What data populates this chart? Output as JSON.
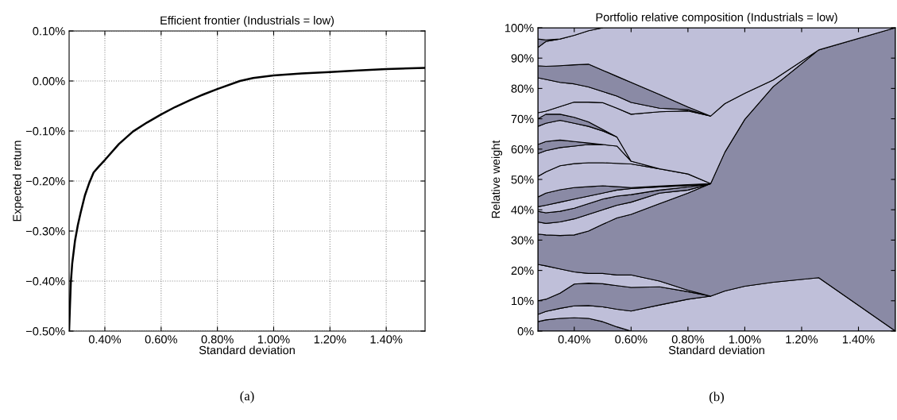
{
  "chart_data": [
    {
      "type": "line",
      "title": "Efficient frontier (Industrials = low)",
      "xlabel": "Standard deviation",
      "ylabel": "Expected return",
      "x": [
        0.273,
        0.276,
        0.279,
        0.284,
        0.294,
        0.304,
        0.314,
        0.329,
        0.345,
        0.36,
        0.38,
        0.4,
        0.45,
        0.5,
        0.55,
        0.6,
        0.65,
        0.7,
        0.75,
        0.8,
        0.88,
        0.927,
        1.0,
        1.1,
        1.2,
        1.3,
        1.4,
        1.538
      ],
      "series": [
        {
          "color": "#000000",
          "values": [
            -0.5,
            -0.45,
            -0.404,
            -0.365,
            -0.319,
            -0.288,
            -0.263,
            -0.229,
            -0.203,
            -0.183,
            -0.17,
            -0.158,
            -0.126,
            -0.101,
            -0.083,
            -0.067,
            -0.052,
            -0.039,
            -0.027,
            -0.016,
            0.0,
            0.006,
            0.011,
            0.015,
            0.018,
            0.021,
            0.024,
            0.026
          ]
        }
      ],
      "xlim": [
        0.273,
        1.538
      ],
      "ylim": [
        -0.5,
        0.1
      ],
      "xticks": [
        {
          "value": 0.4,
          "label": "0.40%"
        },
        {
          "value": 0.6,
          "label": "0.60%"
        },
        {
          "value": 0.8,
          "label": "0.80%"
        },
        {
          "value": 1.0,
          "label": "1.00%"
        },
        {
          "value": 1.2,
          "label": "1.20%"
        },
        {
          "value": 1.4,
          "label": "1.40%"
        }
      ],
      "yticks": [
        {
          "value": -0.5,
          "label": "−0.50%"
        },
        {
          "value": -0.4,
          "label": "−0.40%"
        },
        {
          "value": -0.3,
          "label": "−0.30%"
        },
        {
          "value": -0.2,
          "label": "−0.20%"
        },
        {
          "value": -0.1,
          "label": "−0.10%"
        },
        {
          "value": 0.0,
          "label": "0.00%"
        },
        {
          "value": 0.1,
          "label": "0.10%"
        }
      ],
      "grid": true,
      "annotations": [
        "(a)"
      ]
    },
    {
      "type": "area",
      "stacked": true,
      "title": "Portfolio relative composition (Industrials = low)",
      "xlabel": "Standard deviation",
      "ylabel": "Relative weight",
      "x": [
        0.272,
        0.3,
        0.35,
        0.4,
        0.45,
        0.5,
        0.55,
        0.6,
        0.7,
        0.8,
        0.88,
        0.93,
        1.0,
        1.1,
        1.26,
        1.53
      ],
      "series": [
        {
          "color": "#8a8aa5",
          "values": [
            3.1,
            3.7,
            4.2,
            4.4,
            4.2,
            3.1,
            1.4,
            0,
            null,
            null,
            null,
            null,
            null,
            null,
            null,
            null
          ]
        },
        {
          "color": "#bfbfd9",
          "values": [
            2.4,
            2.8,
            3.3,
            3.9,
            4.2,
            4.9,
            5.8,
            6.6,
            8.6,
            10.5,
            11.5,
            13.2,
            14.8,
            16.1,
            17.6,
            0
          ]
        },
        {
          "color": "#8a8aa5",
          "values": [
            4.5,
            4.0,
            5.0,
            7.2,
            7.4,
            7.6,
            7.8,
            7.8,
            6.0,
            2.5,
            0,
            null,
            null,
            null,
            null,
            null
          ]
        },
        {
          "color": "#bfbfd9",
          "values": [
            12.0,
            11.0,
            8.0,
            4.0,
            3.2,
            3.4,
            3.5,
            4.1,
            1.9,
            0.5,
            0,
            null,
            null,
            null,
            null,
            null
          ]
        },
        {
          "color": "#8a8aa5",
          "values": [
            10.0,
            10.2,
            11.0,
            12.2,
            14.0,
            16.2,
            18.8,
            20.0,
            25.5,
            32.0,
            37.1,
            45.8,
            55.0,
            64.5,
            75.1,
            100
          ]
        },
        {
          "color": "#bfbfd9",
          "values": [
            4.0,
            3.8,
            4.5,
            5.3,
            5.5,
            4.8,
            4.2,
            4.0,
            3.5,
            1.0,
            0,
            null,
            null,
            null,
            null,
            null
          ]
        },
        {
          "color": "#8a8aa5",
          "values": [
            3.5,
            3.5,
            3.5,
            3.5,
            3.5,
            3.5,
            3.0,
            2.5,
            1.0,
            1.0,
            0,
            null,
            null,
            null,
            null,
            null
          ]
        },
        {
          "color": "#bfbfd9",
          "values": [
            1.5,
            2.5,
            3.0,
            3.0,
            2.5,
            2.0,
            2.0,
            2.0,
            1.0,
            0.5,
            0,
            null,
            null,
            null,
            null,
            null
          ]
        },
        {
          "color": "#8a8aa5",
          "values": [
            3.2,
            4.0,
            4.1,
            3.8,
            3.1,
            2.4,
            1.1,
            0.3,
            0.3,
            0.3,
            0,
            null,
            null,
            null,
            null,
            null
          ]
        },
        {
          "color": "#bfbfd9",
          "values": [
            6.8,
            7.0,
            7.9,
            7.9,
            7.9,
            7.6,
            7.7,
            7.8,
            5.7,
            3.5,
            0,
            null,
            null,
            null,
            null,
            null
          ]
        },
        {
          "color": "#bfbfd9",
          "values": [
            7.5,
            7.0,
            6.0,
            5.8,
            6.0,
            6.0,
            5.7,
            0.9,
            0,
            null,
            null,
            null,
            null,
            null,
            null,
            null
          ]
        },
        {
          "color": "#8a8aa5",
          "values": [
            3.0,
            3.0,
            2.5,
            1.5,
            0.5,
            0,
            null,
            null,
            null,
            null,
            null,
            null,
            null,
            null,
            null,
            null
          ]
        },
        {
          "color": "#bfbfd9",
          "values": [
            6.0,
            6.0,
            6.5,
            6.0,
            5.5,
            4.5,
            3.0,
            0,
            null,
            null,
            null,
            null,
            null,
            null,
            null,
            null
          ]
        },
        {
          "color": "#8a8aa5",
          "values": [
            2.5,
            3.0,
            2.0,
            2.0,
            1.5,
            0.5,
            0,
            null,
            null,
            null,
            null,
            null,
            null,
            null,
            null,
            null
          ]
        },
        {
          "color": "#bfbfd9",
          "values": [
            2.0,
            1.0,
            2.5,
            5.0,
            6.5,
            8.8,
            9.5,
            15.5,
            18.8,
            20.8,
            22.3,
            16.0,
            8.6,
            2.2,
            0,
            null
          ]
        },
        {
          "color": "#bfbfd9",
          "values": [
            11.5,
            10.5,
            8.0,
            6.0,
            5.0,
            3.7,
            4.0,
            3.9,
            1.2,
            0.4,
            0,
            null,
            null,
            null,
            null,
            null
          ]
        },
        {
          "color": "#8a8aa5",
          "values": [
            4.0,
            4.3,
            5.5,
            6.3,
            7.5,
            7.0,
            6.5,
            6.6,
            4.5,
            0.9,
            0,
            null,
            null,
            null,
            null,
            null
          ]
        },
        {
          "color": "#bfbfd9",
          "values": [
            6.0,
            8.2,
            8.8,
            9.7,
            11.0,
            14.0,
            16.0,
            18.0,
            22.0,
            26.1,
            29.1,
            25.0,
            21.6,
            17.2,
            7.3,
            0
          ]
        },
        {
          "color": "#8a8aa5",
          "values": [
            2.8,
            0.5,
            0,
            null,
            null,
            null,
            null,
            null,
            null,
            null,
            null,
            null,
            null,
            null,
            null,
            null
          ]
        },
        {
          "color": "#bfbfd9",
          "values": [
            3.7,
            4.0,
            3.7,
            2.5,
            1.0,
            0,
            null,
            null,
            null,
            null,
            null,
            null,
            null,
            null,
            null,
            null
          ]
        }
      ],
      "xlim": [
        0.272,
        1.53
      ],
      "ylim": [
        0,
        100
      ],
      "xticks": [
        {
          "value": 0.4,
          "label": "0.40%"
        },
        {
          "value": 0.6,
          "label": "0.60%"
        },
        {
          "value": 0.8,
          "label": "0.80%"
        },
        {
          "value": 1.0,
          "label": "1.00%"
        },
        {
          "value": 1.2,
          "label": "1.20%"
        },
        {
          "value": 1.4,
          "label": "1.40%"
        }
      ],
      "yticks": [
        {
          "value": 0,
          "label": "0%"
        },
        {
          "value": 10,
          "label": "10%"
        },
        {
          "value": 20,
          "label": "20%"
        },
        {
          "value": 30,
          "label": "30%"
        },
        {
          "value": 40,
          "label": "40%"
        },
        {
          "value": 50,
          "label": "50%"
        },
        {
          "value": 60,
          "label": "60%"
        },
        {
          "value": 70,
          "label": "70%"
        },
        {
          "value": 80,
          "label": "80%"
        },
        {
          "value": 90,
          "label": "90%"
        },
        {
          "value": 100,
          "label": "100%"
        }
      ],
      "annotations": [
        "(b)"
      ]
    }
  ]
}
